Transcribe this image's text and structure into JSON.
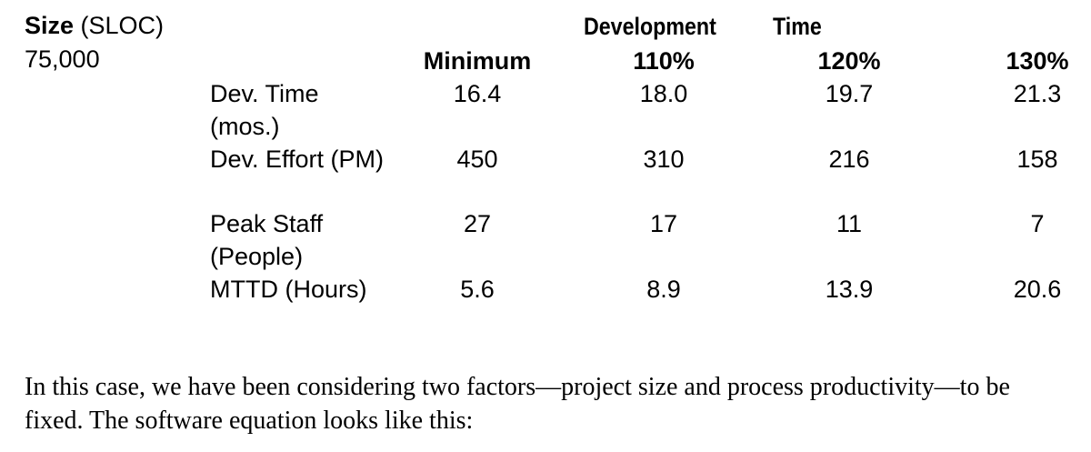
{
  "table": {
    "size_label_bold": "Size",
    "size_label_unit": " (SLOC)",
    "size_value": "75,000",
    "title_word_1": "Development",
    "title_word_2": "Time",
    "columns": [
      "Minimum",
      "110%",
      "120%",
      "130%"
    ],
    "rows": [
      {
        "label": "Dev. Time (mos.)",
        "values": [
          "16.4",
          "18.0",
          "19.7",
          "21.3"
        ]
      },
      {
        "label": "Dev. Effort (PM)",
        "values": [
          "450",
          "310",
          "216",
          "158"
        ]
      },
      {
        "label": "Peak Staff (People)",
        "values": [
          "27",
          "17",
          "11",
          "7"
        ]
      },
      {
        "label": "MTTD (Hours)",
        "values": [
          "5.6",
          "8.9",
          "13.9",
          "20.6"
        ]
      }
    ]
  },
  "body_text": "In this case, we have been considering two factors—project size and process productivity—to be fixed. The software equation looks like this:"
}
